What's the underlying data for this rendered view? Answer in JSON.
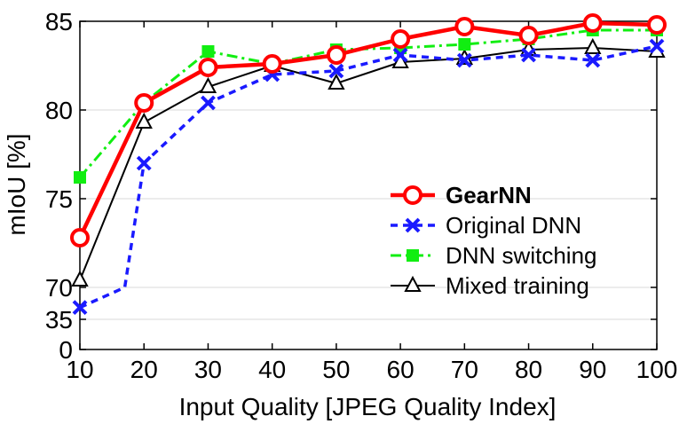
{
  "chart_data": {
    "type": "line",
    "title": "",
    "xlabel": "Input Quality [JPEG Quality Index]",
    "ylabel": "mIoU [%]",
    "x": [
      10,
      20,
      30,
      40,
      50,
      60,
      70,
      80,
      90,
      100
    ],
    "x_ticks": [
      "10",
      "20",
      "30",
      "40",
      "50",
      "60",
      "70",
      "80",
      "90",
      "100"
    ],
    "y_ticks": [
      {
        "value": 0,
        "label": "0"
      },
      {
        "value": 35,
        "label": "35"
      },
      {
        "value": 70,
        "label": "70"
      },
      {
        "value": 75,
        "label": "75"
      },
      {
        "value": 80,
        "label": "80"
      },
      {
        "value": 85,
        "label": "85"
      }
    ],
    "y_axis_note": "broken axis: 0–70 compressed at bottom, 70–85 linear",
    "grid": "horizontal",
    "legend_position": "center-right",
    "series": [
      {
        "name": "GearNN",
        "bold": true,
        "color": "#ff0000",
        "linestyle": "solid",
        "marker": "circle",
        "values": [
          72.8,
          80.4,
          82.4,
          82.6,
          83.1,
          84.0,
          84.7,
          84.2,
          84.9,
          84.8
        ]
      },
      {
        "name": "Original DNN",
        "bold": false,
        "color": "#1a1aff",
        "linestyle": "dashed",
        "marker": "x",
        "values": [
          48.0,
          77.0,
          80.4,
          82.0,
          82.2,
          83.1,
          82.8,
          83.1,
          82.8,
          83.6
        ],
        "extra_path_point": {
          "x": 17,
          "y": 70.0
        }
      },
      {
        "name": "DNN switching",
        "bold": false,
        "color": "#11ee11",
        "linestyle": "dashdot",
        "marker": "square",
        "values": [
          76.2,
          80.4,
          83.3,
          82.6,
          83.4,
          83.5,
          83.7,
          84.0,
          84.5,
          84.5
        ]
      },
      {
        "name": "Mixed training",
        "bold": false,
        "color": "#000000",
        "linestyle": "solid",
        "marker": "triangle",
        "values": [
          70.4,
          79.3,
          81.3,
          82.5,
          81.5,
          82.7,
          82.9,
          83.4,
          83.5,
          83.3
        ]
      }
    ]
  }
}
